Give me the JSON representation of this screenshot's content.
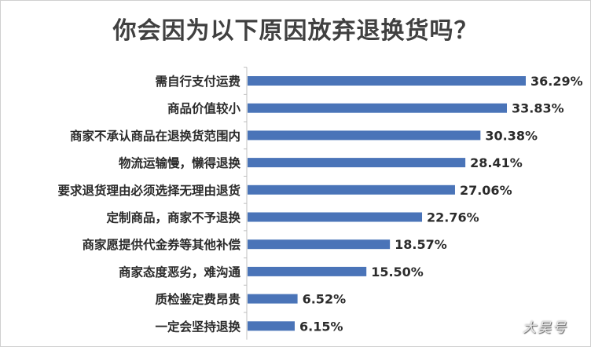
{
  "chart_data": {
    "type": "bar",
    "orientation": "horizontal",
    "title": "你会因为以下原因放弃退换货吗？",
    "categories": [
      "需自行支付运费",
      "商品价值较小",
      "商家不承认商品在退换货范围内",
      "物流运输慢，懒得退换",
      "要求退货理由必须选择无理由退货",
      "定制商品，商家不予退换",
      "商家愿提供代金券等其他补偿",
      "商家态度恶劣，难沟通",
      "质检鉴定费昂贵",
      "一定会坚持退换"
    ],
    "values": [
      36.29,
      33.83,
      30.38,
      28.41,
      27.06,
      22.76,
      18.57,
      15.5,
      6.52,
      6.15
    ],
    "value_labels": [
      "36.29%",
      "33.83%",
      "30.38%",
      "28.41%",
      "27.06%",
      "22.76%",
      "18.57%",
      "15.50%",
      "6.52%",
      "6.15%"
    ],
    "xlim": [
      0,
      36.29
    ],
    "bar_color": "#4a74b8",
    "grid": false,
    "legend": "none"
  },
  "watermark": "大吴号"
}
